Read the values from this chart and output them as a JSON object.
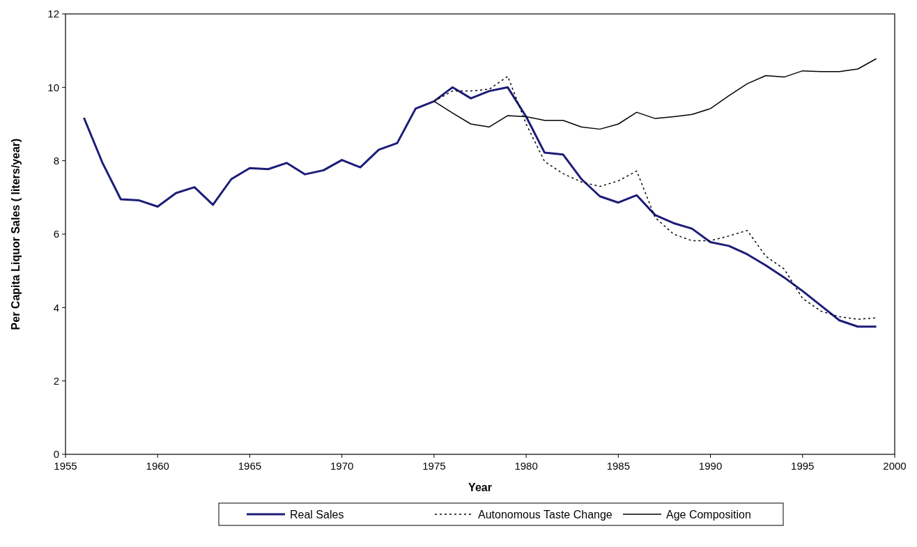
{
  "chart_data": {
    "type": "line",
    "xlabel": "Year",
    "ylabel": "Per Capita Liquor Sales ( liters/year)",
    "xlim": [
      1955,
      2000
    ],
    "xticks": [
      1955,
      1960,
      1965,
      1970,
      1975,
      1980,
      1985,
      1990,
      1995,
      2000
    ],
    "ylim": [
      0,
      12
    ],
    "yticks": [
      0,
      2,
      4,
      6,
      8,
      10,
      12
    ],
    "grid": false,
    "legend": "bottom",
    "marker": "none",
    "series": [
      {
        "name": "Real Sales",
        "color": "#1c1c78",
        "line_style": "solid",
        "x": [
          1956,
          1957,
          1958,
          1959,
          1960,
          1961,
          1962,
          1963,
          1964,
          1965,
          1966,
          1967,
          1968,
          1969,
          1970,
          1971,
          1972,
          1973,
          1974,
          1975,
          1976,
          1977,
          1978,
          1979,
          1980,
          1981,
          1982,
          1983,
          1984,
          1985,
          1986,
          1987,
          1988,
          1989,
          1990,
          1991,
          1992,
          1993,
          1994,
          1995,
          1996,
          1997,
          1998,
          1999
        ],
        "values": [
          9.17,
          7.95,
          6.95,
          6.92,
          6.75,
          7.12,
          7.28,
          6.8,
          7.5,
          7.8,
          7.77,
          7.94,
          7.63,
          7.74,
          8.02,
          7.82,
          8.3,
          8.48,
          9.42,
          9.62,
          10.0,
          9.7,
          9.9,
          10.0,
          9.2,
          8.22,
          8.17,
          7.5,
          7.03,
          6.86,
          7.06,
          6.52,
          6.3,
          6.15,
          5.78,
          5.68,
          5.45,
          5.15,
          4.82,
          4.45,
          4.05,
          3.65,
          3.48,
          3.48
        ]
      },
      {
        "name": "Autonomous Taste Change",
        "color": "#000000",
        "line_style": "dotted",
        "x": [
          1975,
          1976,
          1977,
          1978,
          1979,
          1980,
          1981,
          1982,
          1983,
          1984,
          1985,
          1986,
          1987,
          1988,
          1989,
          1990,
          1991,
          1992,
          1993,
          1994,
          1995,
          1996,
          1997,
          1998,
          1999
        ],
        "values": [
          9.62,
          9.9,
          9.9,
          9.95,
          10.3,
          9.0,
          7.98,
          7.65,
          7.42,
          7.3,
          7.45,
          7.72,
          6.45,
          6.0,
          5.82,
          5.82,
          5.95,
          6.1,
          5.4,
          5.05,
          4.25,
          3.9,
          3.75,
          3.68,
          3.72
        ]
      },
      {
        "name": "Age Composition",
        "color": "#000000",
        "line_style": "solid",
        "x": [
          1975,
          1976,
          1977,
          1978,
          1979,
          1980,
          1981,
          1982,
          1983,
          1984,
          1985,
          1986,
          1987,
          1988,
          1989,
          1990,
          1991,
          1992,
          1993,
          1994,
          1995,
          1996,
          1997,
          1998,
          1999
        ],
        "values": [
          9.62,
          9.3,
          9.0,
          8.92,
          9.23,
          9.2,
          9.1,
          9.1,
          8.92,
          8.86,
          9.0,
          9.32,
          9.15,
          9.2,
          9.26,
          9.42,
          9.77,
          10.1,
          10.32,
          10.28,
          10.45,
          10.43,
          10.43,
          10.5,
          10.78
        ]
      }
    ]
  }
}
